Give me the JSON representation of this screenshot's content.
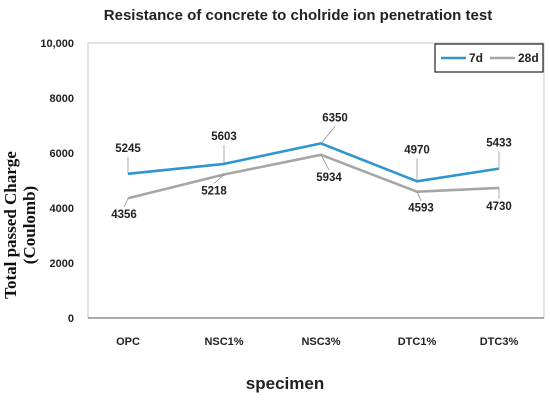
{
  "chart_data": {
    "type": "line",
    "title": "Resistance of concrete to cholride ion penetration test",
    "xlabel": "specimen",
    "ylabel_line1": "Total passed Charge",
    "ylabel_line2": "(Coulomb)",
    "ylim": [
      0,
      10000
    ],
    "yticks": [
      "0",
      "2000",
      "4000",
      "6000",
      "8000",
      "10,000"
    ],
    "categories": [
      "OPC",
      "NSC1%",
      "NSC3%",
      "DTC1%",
      "DTC3%"
    ],
    "series": [
      {
        "name": "7d",
        "color": "#2e95d1",
        "values": [
          5245,
          5603,
          6350,
          4970,
          5433
        ],
        "labels": [
          "5245",
          "5603",
          "6350",
          "4970",
          "5433"
        ]
      },
      {
        "name": "28d",
        "color": "#a6a6a6",
        "values": [
          4356,
          5218,
          5934,
          4593,
          4730
        ],
        "labels": [
          "4356",
          "5218",
          "5934",
          "4593",
          "4730"
        ]
      }
    ],
    "grid": false,
    "legend": "top-right"
  }
}
